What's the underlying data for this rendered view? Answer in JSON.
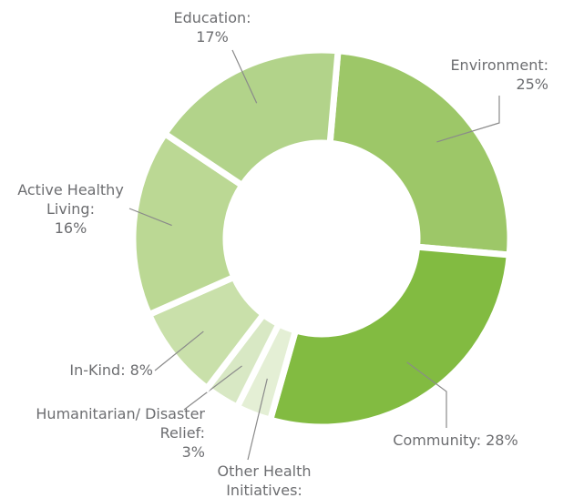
{
  "chart_data": {
    "type": "donut",
    "categories": [
      "Environment:",
      "Community:",
      "Other Health Initiatives:",
      "Humanitarian/ Disaster Relief:",
      "In-Kind:",
      "Active Healthy Living:",
      "Education:"
    ],
    "values": [
      25,
      28,
      3,
      3,
      8,
      16,
      17
    ],
    "value_labels": [
      "25%",
      "28%",
      "3%",
      "3%",
      "8%",
      "16%",
      "17%"
    ],
    "colors": [
      "#9dc768",
      "#82bb41",
      "#e4efd5",
      "#d8e8c4",
      "#c9e0aa",
      "#bbd894",
      "#b2d38a"
    ]
  }
}
